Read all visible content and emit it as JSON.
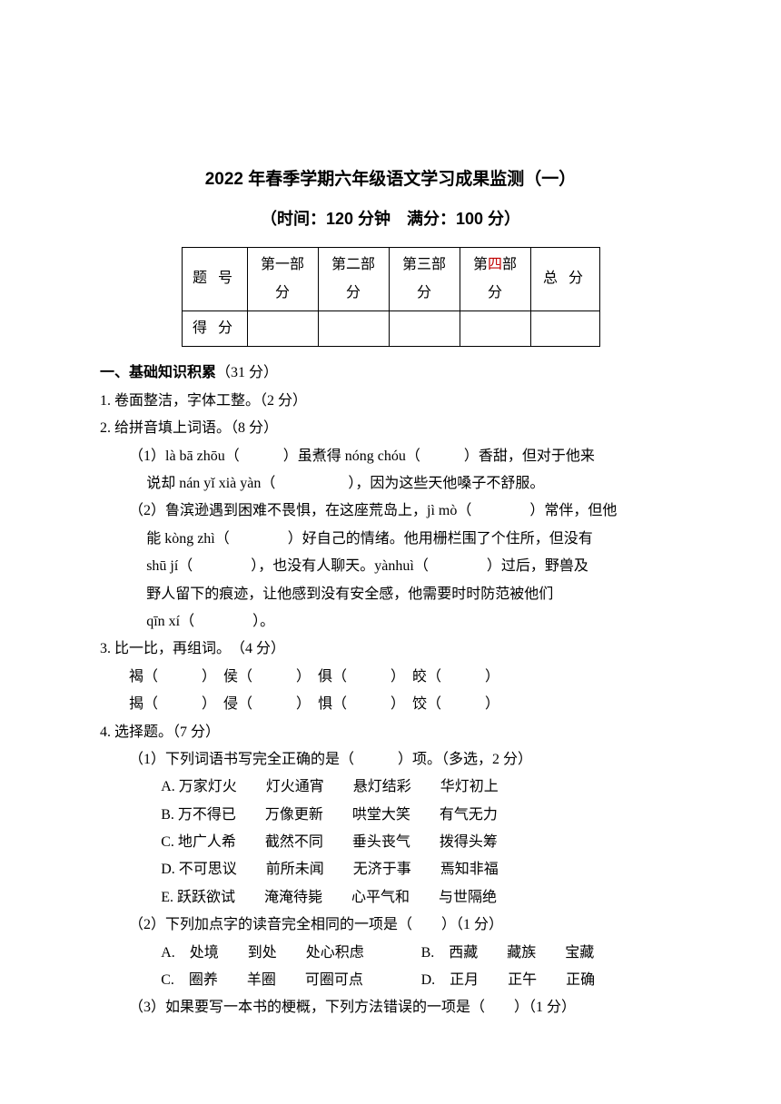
{
  "title": "2022 年春季学期六年级语文学习成果监测（一）",
  "subtitle": "（时间：120 分钟　满分：100 分）",
  "table": {
    "row1_label": "题 号",
    "parts": [
      "第一部分",
      "第二部分",
      "第三部分"
    ],
    "part4_prefix": "第",
    "part4_red": "四",
    "part4_suffix": "部分",
    "total": "总 分",
    "row2_label": "得 分"
  },
  "section1": {
    "head": "一、基础知识积累",
    "points": "（31 分）"
  },
  "q1": "1. 卷面整洁，字体工整。（2 分）",
  "q2": {
    "head": "2. 给拼音填上词语。（8 分）",
    "line1": "（1）là bā zhōu（　　　）虽煮得 nóng chóu（　　　）香甜，但对于他来",
    "line2": "说却 nán yǐ xià yàn（　　　　　），因为这些天他嗓子不舒服。",
    "line3": "（2）鲁滨逊遇到困难不畏惧，在这座荒岛上，jì mò（　　　　）常伴，但他",
    "line4": "能 kòng zhì（　　　　）好自己的情绪。他用栅栏围了个住所，但没有",
    "line5": "shū jí（　　　　），也没有人聊天。yànhuì（　　　　）过后，野兽及",
    "line6": "野人留下的痕迹，让他感到没有安全感，他需要时时防范被他们",
    "line7": "qīn xí（　　　　）。"
  },
  "q3": {
    "head": "3. 比一比，再组词。　（4 分）",
    "row1": "褐（　　　）　侯（　　　）　俱（　　　）　皎（　　　）",
    "row2": "揭（　　　）　侵（　　　）　惧（　　　）　饺（　　　）"
  },
  "q4": {
    "head": "4. 选择题。（7 分）",
    "s1": {
      "head": "（1）下列词语书写完全正确的是（　　　）项。（多选，2 分）",
      "a": "A. 万家灯火　　灯火通宵　　悬灯结彩　　华灯初上",
      "b": "B. 万不得已　　万像更新　　哄堂大笑　　有气无力",
      "c": "C. 地广人希　　截然不同　　垂头丧气　　拨得头筹",
      "d": "D. 不可思议　　前所未闻　　无济于事　　焉知非福",
      "e": "E. 跃跃欲试　　淹淹待毙　　心平气和　　与世隔绝"
    },
    "s2": {
      "head": "（2）下列加点字的读音完全相同的一项是（　　）（1 分）",
      "a": "A.　处境　　到处　　处心积虑",
      "b": "B.　西藏　　藏族　　宝藏",
      "c": "C.　圈养　　羊圈　　可圈可点",
      "d": "D.　正月　　正午　　正确"
    },
    "s3": {
      "head": "（3）如果要写一本书的梗概，下列方法错误的一项是（　　）（1 分）"
    }
  }
}
